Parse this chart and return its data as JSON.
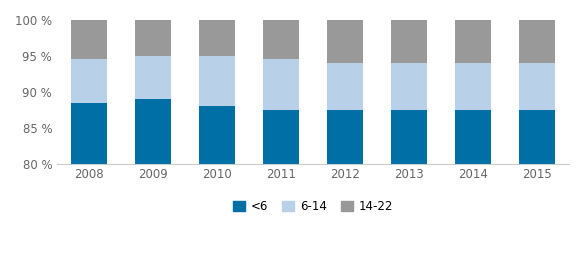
{
  "years": [
    2008,
    2009,
    2010,
    2011,
    2012,
    2013,
    2014,
    2015
  ],
  "base": 80,
  "series_heights": {
    "<6": [
      8.5,
      9.0,
      8.0,
      7.5,
      7.5,
      7.5,
      7.5,
      7.5
    ],
    "6-14": [
      6.0,
      6.0,
      7.0,
      7.0,
      6.5,
      6.5,
      6.5,
      6.5
    ],
    "14-22": [
      5.5,
      5.0,
      5.0,
      5.5,
      6.0,
      6.0,
      6.0,
      6.0
    ]
  },
  "colors": {
    "<6": "#006fa6",
    "6-14": "#b8d0e8",
    "14-22": "#999999"
  },
  "ylim": [
    80,
    100
  ],
  "yticks": [
    80,
    85,
    90,
    95,
    100
  ],
  "ytick_labels": [
    "80 %",
    "85 %",
    "90 %",
    "95 %",
    "100 %"
  ],
  "bar_width": 0.55,
  "background_color": "#ffffff",
  "legend_order": [
    "<6",
    "6-14",
    "14-22"
  ]
}
